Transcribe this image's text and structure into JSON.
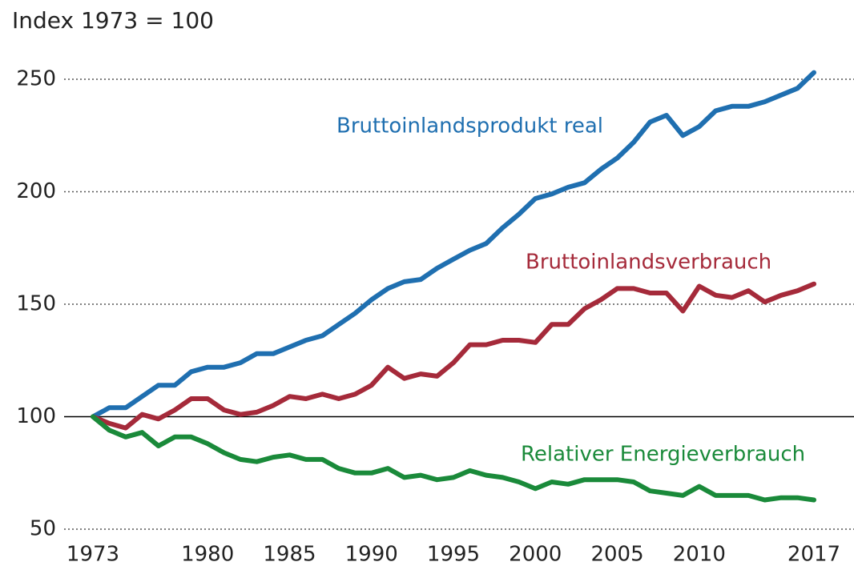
{
  "chart_data": {
    "type": "line",
    "y_axis_label": "Index 1973 = 100",
    "x": [
      1973,
      1974,
      1975,
      1976,
      1977,
      1978,
      1979,
      1980,
      1981,
      1982,
      1983,
      1984,
      1985,
      1986,
      1987,
      1988,
      1989,
      1990,
      1991,
      1992,
      1993,
      1994,
      1995,
      1996,
      1997,
      1998,
      1999,
      2000,
      2001,
      2002,
      2003,
      2004,
      2005,
      2006,
      2007,
      2008,
      2009,
      2010,
      2011,
      2012,
      2013,
      2014,
      2015,
      2016,
      2017
    ],
    "series": [
      {
        "name": "Bruttoinlandsprodukt real",
        "color": "#1f6fb0",
        "values": [
          100,
          104,
          104,
          109,
          114,
          114,
          120,
          122,
          122,
          124,
          128,
          128,
          131,
          134,
          136,
          141,
          146,
          152,
          157,
          160,
          161,
          166,
          170,
          174,
          177,
          184,
          190,
          197,
          199,
          202,
          204,
          210,
          215,
          222,
          231,
          234,
          225,
          229,
          236,
          238,
          238,
          240,
          243,
          246,
          253
        ]
      },
      {
        "name": "Bruttoinlandsverbrauch",
        "color": "#a52a3a",
        "values": [
          100,
          97,
          95,
          101,
          99,
          103,
          108,
          108,
          103,
          101,
          102,
          105,
          109,
          108,
          110,
          108,
          110,
          114,
          122,
          117,
          119,
          118,
          124,
          132,
          132,
          134,
          134,
          133,
          141,
          141,
          148,
          152,
          157,
          157,
          155,
          155,
          147,
          158,
          154,
          153,
          156,
          151,
          154,
          156,
          159
        ]
      },
      {
        "name": "Relativer Energieverbrauch",
        "color": "#1a8a3a",
        "values": [
          100,
          94,
          91,
          93,
          87,
          91,
          91,
          88,
          84,
          81,
          80,
          82,
          83,
          81,
          81,
          77,
          75,
          75,
          77,
          73,
          74,
          72,
          73,
          76,
          74,
          73,
          71,
          68,
          71,
          70,
          72,
          72,
          72,
          71,
          67,
          66,
          65,
          69,
          65,
          65,
          65,
          63,
          64,
          64,
          63
        ]
      }
    ],
    "xlim": [
      1973,
      2017
    ],
    "xticks": [
      1973,
      1980,
      1985,
      1990,
      1995,
      2000,
      2005,
      2010,
      2017
    ],
    "ylim": [
      50,
      255
    ],
    "yticks": [
      50,
      100,
      150,
      200,
      250
    ],
    "reference_line": 100,
    "grid": true
  }
}
